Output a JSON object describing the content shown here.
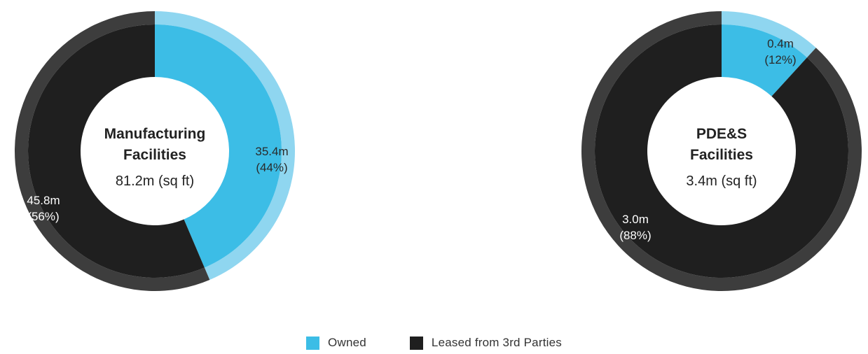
{
  "chart_data": [
    {
      "type": "donut",
      "center_title": [
        "Manufacturing",
        "Facilities"
      ],
      "center_total": "81.2m (sq ft)",
      "slices": [
        {
          "category": "Owned",
          "value": 35.4,
          "percent": 44,
          "label_value": "35.4m",
          "label_pct": "(44%)"
        },
        {
          "category": "Leased from 3rd Parties",
          "value": 45.8,
          "percent": 56,
          "label_value": "45.8m",
          "label_pct": "(56%)"
        }
      ]
    },
    {
      "type": "donut",
      "center_title": [
        "PDE&S",
        "Facilities"
      ],
      "center_total": "3.4m (sq ft)",
      "slices": [
        {
          "category": "Owned",
          "value": 0.4,
          "percent": 12,
          "label_value": "0.4m",
          "label_pct": "(12%)"
        },
        {
          "category": "Leased from 3rd Parties",
          "value": 3.0,
          "percent": 88,
          "label_value": "3.0m",
          "label_pct": "(88%)"
        }
      ]
    }
  ],
  "legend": [
    {
      "label": "Owned",
      "color": "#3cbde6"
    },
    {
      "label": "Leased from 3rd Parties",
      "color": "#1f1f1f"
    }
  ],
  "colors": {
    "Owned": {
      "inner": "#3cbde6",
      "outer": "#8fd6f0"
    },
    "Leased from 3rd Parties": {
      "inner": "#1f1f1f",
      "outer": "#3d3d3d"
    }
  }
}
